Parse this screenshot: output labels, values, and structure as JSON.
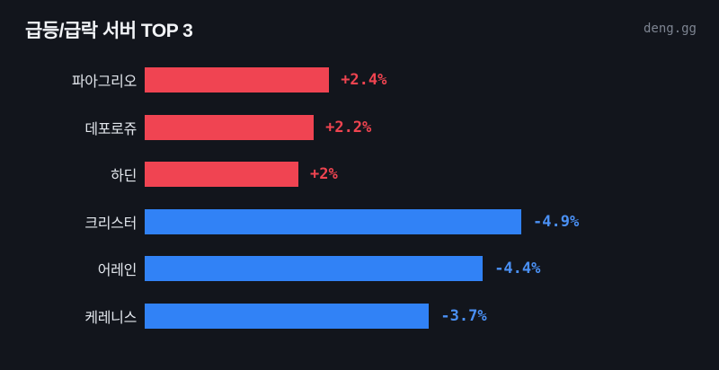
{
  "header": {
    "title": "급등/급락 서버 TOP 3",
    "watermark": "deng.gg"
  },
  "colors": {
    "background": "#12151c",
    "up_bar": "#f04452",
    "down_bar": "#3182f6",
    "up_text": "#ef4450",
    "down_text": "#4a90f4",
    "title_text": "#f2f4f7",
    "label_text": "#e2e6ec",
    "watermark_text": "#7d8491"
  },
  "chart_data": {
    "type": "bar",
    "orientation": "horizontal",
    "title": "급등/급락 서버 TOP 3",
    "value_unit": "%",
    "categories": [
      "파아그리오",
      "데포로쥬",
      "하딘",
      "크리스터",
      "어레인",
      "케레니스"
    ],
    "values": [
      2.4,
      2.2,
      2.0,
      -4.9,
      -4.4,
      -3.7
    ],
    "value_labels": [
      "+2.4%",
      "+2.2%",
      "+2%",
      "-4.9%",
      "-4.4%",
      "-3.7%"
    ],
    "series_colors": {
      "positive": "#f04452",
      "negative": "#3182f6"
    },
    "xlim": [
      0,
      4.9
    ],
    "grid": false,
    "legend": false,
    "note": "bar length proportional to absolute value; positive=red (surge), negative=blue (plunge)"
  }
}
